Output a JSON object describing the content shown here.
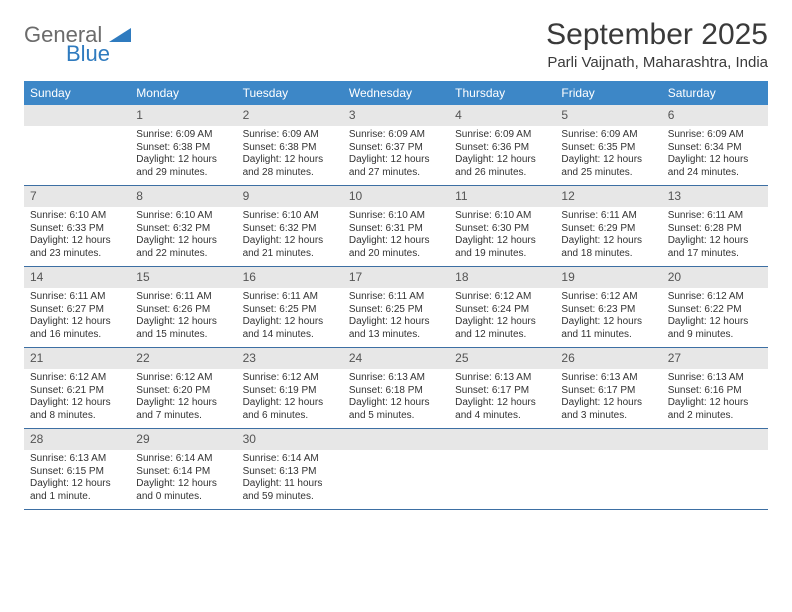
{
  "logo": {
    "general": "General",
    "blue": "Blue"
  },
  "title": "September 2025",
  "subtitle": "Parli Vaijnath, Maharashtra, India",
  "colors": {
    "header_bg": "#3d87c7",
    "header_text": "#ffffff",
    "daynum_bg": "#e7e7e7",
    "daynum_text": "#545454",
    "rule": "#3d6fa3",
    "logo_gray": "#6b6b6b",
    "logo_blue": "#2f7bbf"
  },
  "dayNames": [
    "Sunday",
    "Monday",
    "Tuesday",
    "Wednesday",
    "Thursday",
    "Friday",
    "Saturday"
  ],
  "weeks": [
    [
      {
        "n": "",
        "sr": "",
        "ss": "",
        "dl": ""
      },
      {
        "n": "1",
        "sr": "Sunrise: 6:09 AM",
        "ss": "Sunset: 6:38 PM",
        "dl": "Daylight: 12 hours and 29 minutes."
      },
      {
        "n": "2",
        "sr": "Sunrise: 6:09 AM",
        "ss": "Sunset: 6:38 PM",
        "dl": "Daylight: 12 hours and 28 minutes."
      },
      {
        "n": "3",
        "sr": "Sunrise: 6:09 AM",
        "ss": "Sunset: 6:37 PM",
        "dl": "Daylight: 12 hours and 27 minutes."
      },
      {
        "n": "4",
        "sr": "Sunrise: 6:09 AM",
        "ss": "Sunset: 6:36 PM",
        "dl": "Daylight: 12 hours and 26 minutes."
      },
      {
        "n": "5",
        "sr": "Sunrise: 6:09 AM",
        "ss": "Sunset: 6:35 PM",
        "dl": "Daylight: 12 hours and 25 minutes."
      },
      {
        "n": "6",
        "sr": "Sunrise: 6:09 AM",
        "ss": "Sunset: 6:34 PM",
        "dl": "Daylight: 12 hours and 24 minutes."
      }
    ],
    [
      {
        "n": "7",
        "sr": "Sunrise: 6:10 AM",
        "ss": "Sunset: 6:33 PM",
        "dl": "Daylight: 12 hours and 23 minutes."
      },
      {
        "n": "8",
        "sr": "Sunrise: 6:10 AM",
        "ss": "Sunset: 6:32 PM",
        "dl": "Daylight: 12 hours and 22 minutes."
      },
      {
        "n": "9",
        "sr": "Sunrise: 6:10 AM",
        "ss": "Sunset: 6:32 PM",
        "dl": "Daylight: 12 hours and 21 minutes."
      },
      {
        "n": "10",
        "sr": "Sunrise: 6:10 AM",
        "ss": "Sunset: 6:31 PM",
        "dl": "Daylight: 12 hours and 20 minutes."
      },
      {
        "n": "11",
        "sr": "Sunrise: 6:10 AM",
        "ss": "Sunset: 6:30 PM",
        "dl": "Daylight: 12 hours and 19 minutes."
      },
      {
        "n": "12",
        "sr": "Sunrise: 6:11 AM",
        "ss": "Sunset: 6:29 PM",
        "dl": "Daylight: 12 hours and 18 minutes."
      },
      {
        "n": "13",
        "sr": "Sunrise: 6:11 AM",
        "ss": "Sunset: 6:28 PM",
        "dl": "Daylight: 12 hours and 17 minutes."
      }
    ],
    [
      {
        "n": "14",
        "sr": "Sunrise: 6:11 AM",
        "ss": "Sunset: 6:27 PM",
        "dl": "Daylight: 12 hours and 16 minutes."
      },
      {
        "n": "15",
        "sr": "Sunrise: 6:11 AM",
        "ss": "Sunset: 6:26 PM",
        "dl": "Daylight: 12 hours and 15 minutes."
      },
      {
        "n": "16",
        "sr": "Sunrise: 6:11 AM",
        "ss": "Sunset: 6:25 PM",
        "dl": "Daylight: 12 hours and 14 minutes."
      },
      {
        "n": "17",
        "sr": "Sunrise: 6:11 AM",
        "ss": "Sunset: 6:25 PM",
        "dl": "Daylight: 12 hours and 13 minutes."
      },
      {
        "n": "18",
        "sr": "Sunrise: 6:12 AM",
        "ss": "Sunset: 6:24 PM",
        "dl": "Daylight: 12 hours and 12 minutes."
      },
      {
        "n": "19",
        "sr": "Sunrise: 6:12 AM",
        "ss": "Sunset: 6:23 PM",
        "dl": "Daylight: 12 hours and 11 minutes."
      },
      {
        "n": "20",
        "sr": "Sunrise: 6:12 AM",
        "ss": "Sunset: 6:22 PM",
        "dl": "Daylight: 12 hours and 9 minutes."
      }
    ],
    [
      {
        "n": "21",
        "sr": "Sunrise: 6:12 AM",
        "ss": "Sunset: 6:21 PM",
        "dl": "Daylight: 12 hours and 8 minutes."
      },
      {
        "n": "22",
        "sr": "Sunrise: 6:12 AM",
        "ss": "Sunset: 6:20 PM",
        "dl": "Daylight: 12 hours and 7 minutes."
      },
      {
        "n": "23",
        "sr": "Sunrise: 6:12 AM",
        "ss": "Sunset: 6:19 PM",
        "dl": "Daylight: 12 hours and 6 minutes."
      },
      {
        "n": "24",
        "sr": "Sunrise: 6:13 AM",
        "ss": "Sunset: 6:18 PM",
        "dl": "Daylight: 12 hours and 5 minutes."
      },
      {
        "n": "25",
        "sr": "Sunrise: 6:13 AM",
        "ss": "Sunset: 6:17 PM",
        "dl": "Daylight: 12 hours and 4 minutes."
      },
      {
        "n": "26",
        "sr": "Sunrise: 6:13 AM",
        "ss": "Sunset: 6:17 PM",
        "dl": "Daylight: 12 hours and 3 minutes."
      },
      {
        "n": "27",
        "sr": "Sunrise: 6:13 AM",
        "ss": "Sunset: 6:16 PM",
        "dl": "Daylight: 12 hours and 2 minutes."
      }
    ],
    [
      {
        "n": "28",
        "sr": "Sunrise: 6:13 AM",
        "ss": "Sunset: 6:15 PM",
        "dl": "Daylight: 12 hours and 1 minute."
      },
      {
        "n": "29",
        "sr": "Sunrise: 6:14 AM",
        "ss": "Sunset: 6:14 PM",
        "dl": "Daylight: 12 hours and 0 minutes."
      },
      {
        "n": "30",
        "sr": "Sunrise: 6:14 AM",
        "ss": "Sunset: 6:13 PM",
        "dl": "Daylight: 11 hours and 59 minutes."
      },
      {
        "n": "",
        "sr": "",
        "ss": "",
        "dl": ""
      },
      {
        "n": "",
        "sr": "",
        "ss": "",
        "dl": ""
      },
      {
        "n": "",
        "sr": "",
        "ss": "",
        "dl": ""
      },
      {
        "n": "",
        "sr": "",
        "ss": "",
        "dl": ""
      }
    ]
  ]
}
